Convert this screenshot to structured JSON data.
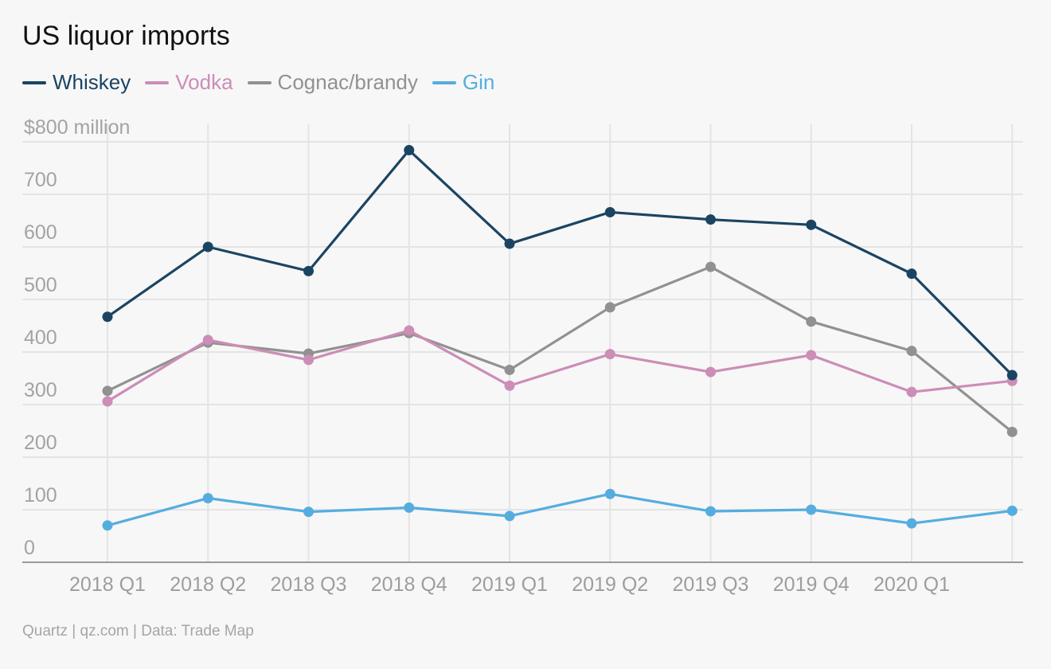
{
  "title": "US liquor imports",
  "source": "Quartz | qz.com | Data: Trade Map",
  "chart_data": {
    "type": "line",
    "title": "US liquor imports",
    "xlabel": "",
    "ylabel": "",
    "ylim": [
      0,
      800
    ],
    "yticks": [
      0,
      100,
      200,
      300,
      400,
      500,
      600,
      700,
      800
    ],
    "ytick_labels": [
      "0",
      "100",
      "200",
      "300",
      "400",
      "500",
      "600",
      "700",
      "$800 million"
    ],
    "categories": [
      "2018 Q1",
      "2018 Q2",
      "2018 Q3",
      "2018 Q4",
      "2019 Q1",
      "2019 Q2",
      "2019 Q3",
      "2019 Q4",
      "2020 Q1",
      ""
    ],
    "xtick_labels": [
      "2018 Q1",
      "2018 Q2",
      "2018 Q3",
      "2018 Q4",
      "2019 Q1",
      "2019 Q2",
      "2019 Q3",
      "2019 Q4",
      "2020 Q1"
    ],
    "grid": true,
    "legend_position": "top-left",
    "series": [
      {
        "name": "Whiskey",
        "color": "#1b4462",
        "values": [
          467,
          600,
          554,
          784,
          606,
          666,
          652,
          642,
          549,
          356
        ]
      },
      {
        "name": "Vodka",
        "color": "#cc8db6",
        "values": [
          306,
          423,
          385,
          441,
          336,
          396,
          362,
          394,
          324,
          345
        ]
      },
      {
        "name": "Cognac/brandy",
        "color": "#919191",
        "values": [
          326,
          418,
          397,
          436,
          366,
          485,
          562,
          458,
          402,
          248
        ]
      },
      {
        "name": "Gin",
        "color": "#55addf",
        "values": [
          70,
          122,
          96,
          104,
          88,
          130,
          97,
          100,
          74,
          98
        ]
      }
    ]
  }
}
